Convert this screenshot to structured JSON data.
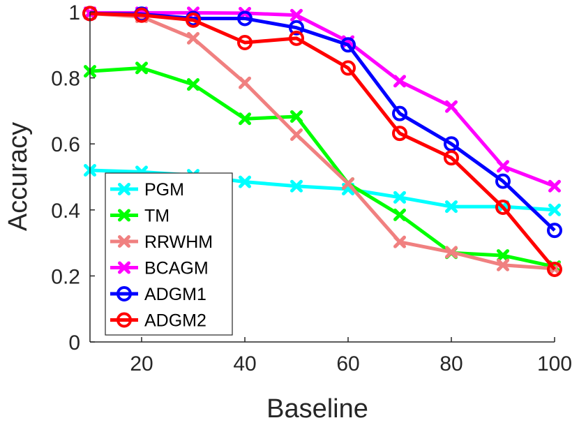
{
  "chart_data": {
    "type": "line",
    "title": "",
    "xlabel": "Baseline",
    "ylabel": "Accuracy",
    "xlim": [
      10,
      100
    ],
    "ylim": [
      0,
      1
    ],
    "x": [
      10,
      20,
      30,
      40,
      50,
      60,
      70,
      80,
      90,
      100
    ],
    "xticks": [
      20,
      40,
      60,
      80,
      100
    ],
    "yticks": [
      0,
      0.2,
      0.4,
      0.6,
      0.8,
      1
    ],
    "ytick_labels": [
      "0",
      "0.2",
      "0.4",
      "0.6",
      "0.8",
      "1"
    ],
    "grid": false,
    "legend_position": "lower-left",
    "series": [
      {
        "name": "PGM",
        "color": "#00ffff",
        "marker": "x",
        "values": [
          0.52,
          0.515,
          0.505,
          0.485,
          0.472,
          0.463,
          0.438,
          0.41,
          0.41,
          0.4
        ]
      },
      {
        "name": "TM",
        "color": "#00ff00",
        "marker": "x",
        "values": [
          0.82,
          0.83,
          0.78,
          0.676,
          0.683,
          0.48,
          0.385,
          0.27,
          0.262,
          0.228
        ]
      },
      {
        "name": "RRWHM",
        "color": "#f08080",
        "marker": "x",
        "values": [
          0.995,
          0.985,
          0.92,
          0.785,
          0.628,
          0.48,
          0.303,
          0.272,
          0.233,
          0.222
        ]
      },
      {
        "name": "BCAGM",
        "color": "#ff00ff",
        "marker": "x",
        "values": [
          0.997,
          0.997,
          0.997,
          0.996,
          0.99,
          0.91,
          0.79,
          0.713,
          0.532,
          0.472
        ]
      },
      {
        "name": "ADGM1",
        "color": "#0000ff",
        "marker": "o",
        "values": [
          0.995,
          0.993,
          0.98,
          0.98,
          0.952,
          0.9,
          0.692,
          0.6,
          0.487,
          0.338
        ]
      },
      {
        "name": "ADGM2",
        "color": "#ff0000",
        "marker": "o",
        "values": [
          0.995,
          0.99,
          0.975,
          0.907,
          0.92,
          0.83,
          0.632,
          0.558,
          0.408,
          0.22
        ]
      }
    ]
  }
}
